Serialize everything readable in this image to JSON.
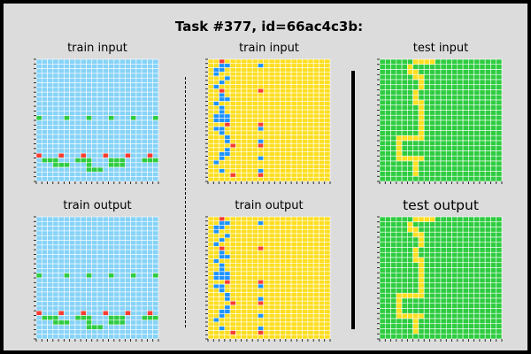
{
  "title": "Task #377, id=66ac4c3b:",
  "colors": {
    "background": "#dcdcdc",
    "grid_line": "#ffffff",
    "palette": {
      "B": "#87d3f8",
      "Y": "#fede1f",
      "G": "#2ecc40",
      "R": "#f93c31",
      "U": "#1e93ff"
    }
  },
  "panels": [
    {
      "label": "train input",
      "grid": [
        "BBBBBBBBBBBBBBBBBBBBBB",
        "BBBBBBBBBBBBBBBBBBBBBB",
        "BBBBBBBBBBBBBBBBBBBBBB",
        "BBBBBBBBBBBBBBBBBBBBBB",
        "BBBBBBBBBBBBBBBBBBBBBB",
        "BBBBBBBBBBBBBBBBBBBBBB",
        "BBBBBBBBBBBBBBBBBBBBBB",
        "BBBBBBBBBBBBBBBBBBBBBB",
        "BBBBBBBBBBBBBBBBBBBBBB",
        "BBBBBBBBBBBBBBBBBBBBBB",
        "BBBBBBBBBBBBBBBBBBBBBB",
        "BBBBBBBBBBBBBBBBBBBBBB",
        "GBBBBGBBBGBBBGBBBGBBBG",
        "BBBBBBBBBBBBBBBBBBBBBB",
        "BBBBBBBBBBBBBBBBBBBBBB",
        "BBBBBBBBBBBBBBBBBBBBBB",
        "BBBBBBBBBBBBBBBBBBBBBB",
        "BBBBBBBBBBBBBBBBBBBBBB",
        "BBBBBBBBBBBBBBBBBBBBBB",
        "BBBBBBBBBBBBBBBBBBBBBB",
        "RBBBRBBBRBBBRBBBRBBBRB",
        "BGGGBBBGGGBBBGGGBBBGGG",
        "BBBGGGBBBGBBBGGGBBBBBB",
        "BBBBBBBBBGGGBBBBBBBBBB",
        "BBBBBBBBBBBBBBBBBBBBBB",
        "BBBBBBBBBBBBBBBBBBBBBB"
      ]
    },
    {
      "label": "train input",
      "grid": [
        "YYRYYYYYYYYYYYYYYYYYYY",
        "YYUUYYYYYUYYYYYYYYYYYY",
        "YUUYYYYYYYYYYYYYYYYYYY",
        "YUYYYYYYYYYYYYYYYYYYYY",
        "YYYUYYYYYYYYYYYYYYYYYY",
        "YYUYYYYYYYYYYYYYYYYYYY",
        "YUYYYYYYYYYYYYYYYYYYYY",
        "YYRYYYYYYRYYYYYYYYYYYY",
        "YYUYYYYYYYYYYYYYYYYYYY",
        "YYUUYYYYYYYYYYYYYYYYYY",
        "YUYYYYYYYYYYYYYYYYYYYY",
        "YYUYYYYYYYYYYYYYYYYYYY",
        "YYUYYYYYYYYYYYYYYYYYYY",
        "YUUUYYYYYYYYYYYYYYYYYY",
        "YUUUYYYYYYYYYYYYYYYYYY",
        "YYYRYYYYYRYYYYYYYYYYYY",
        "YUUYYYYYYUYYYYYYYYYYYY",
        "YYUYYYYYYYYYYYYYYYYYYY",
        "YYYUYYYYYYYYYYYYYYYYYY",
        "YYYUYYYYYUYYYYYYYYYYYY",
        "YYYYRYYYYRYYYYYYYYYYYY",
        "YYYUYYYYYYYYYYYYYYYYYY",
        "YYUUYYYYYYYYYYYYYYYYYY",
        "YYUYYYYYYUYYYYYYYYYYYY",
        "YUYYYYYYYYYYYYYYYYYYYY",
        "YYYYYYYYYYYYYYYYYYYYYY",
        "YYUYYYYYYUYYYYYYYYYYYY",
        "YYYYRYYYYRYYYYYYYYYYYY",
        "YYYYYYYYYYYYYYYYYYYYYY"
      ]
    },
    {
      "label": "test input",
      "grid": [
        "GGGGGGYYYYGGGGGGGGGGGG",
        "GGGGGYGGGGGGGGGGGGGGGG",
        "GGGGGYYGGGGGGGGGGGGGGG",
        "GGGGGGYYGGGGGGGGGGGGGG",
        "GGGGGGGYGGGGGGGGGGGGGG",
        "GGGGGGGYGGGGGGGGGGGGGG",
        "GGGGGGYGGGGGGGGGGGGGGG",
        "GGGGGGYGGGGGGGGGGGGGGG",
        "GGGGGGYYGGGGGGGGGGGGGG",
        "GGGGGGGYGGGGGGGGGGGGGG",
        "GGGGGGGYGGGGGGGGGGGGGG",
        "GGGGGGGYGGGGGGGGGGGGGG",
        "GGGGGGGYGGGGGGGGGGGGGG",
        "GGGGGGGYGGGGGGGGGGGGGG",
        "GGGGGGGYGGGGGGGGGGGGGG",
        "GGGYYYYYGGGGGGGGGGGGGG",
        "GGGYGGGGGGGGGGGGGGGGGG",
        "GGGYGGGGGGGGGGGGGGGGGG",
        "GGGYGGGGGGGGGGGGGGGGGG",
        "GGGYYYYYGGGGGGGGGGGGGG",
        "GGGGGGYGGGGGGGGGGGGGGG",
        "GGGGGGYGGGGGGGGGGGGGGG",
        "GGGGGGYGGGGGGGGGGGGGGG",
        "GGGGGGGGGGGGGGGGGGGGGG"
      ]
    },
    {
      "label": "train output",
      "grid": [
        "BBBBBBBBBBBBBBBBBBBBBB",
        "BBBBBBBBBBBBBBBBBBBBBB",
        "BBBBBBBBBBBBBBBBBBBBBB",
        "BBBBBBBBBBBBBBBBBBBBBB",
        "BBBBBBBBBBBBBBBBBBBBBB",
        "BBBBBBBBBBBBBBBBBBBBBB",
        "BBBBBBBBBBBBBBBBBBBBBB",
        "BBBBBBBBBBBBBBBBBBBBBB",
        "BBBBBBBBBBBBBBBBBBBBBB",
        "BBBBBBBBBBBBBBBBBBBBBB",
        "BBBBBBBBBBBBBBBBBBBBBB",
        "BBBBBBBBBBBBBBBBBBBBBB",
        "GBBBBGBBBGBBBGBBBGBBBG",
        "BBBBBBBBBBBBBBBBBBBBBB",
        "BBBBBBBBBBBBBBBBBBBBBB",
        "BBBBBBBBBBBBBBBBBBBBBB",
        "BBBBBBBBBBBBBBBBBBBBBB",
        "BBBBBBBBBBBBBBBBBBBBBB",
        "BBBBBBBBBBBBBBBBBBBBBB",
        "BBBBBBBBBBBBBBBBBBBBBB",
        "RBBBRBBBRBBBRBBBRBBBRB",
        "BGGGBBBGGGBBBGGGBBBGGG",
        "BBBGGGBBBGBBBGGGBBBBBB",
        "BBBBBBBBBGGGBBBBBBBBBB",
        "BBBBBBBBBBBBBBBBBBBBBB",
        "BBBBBBBBBBBBBBBBBBBBBB"
      ]
    },
    {
      "label": "train output",
      "grid": [
        "YYRYYYYYYYYYYYYYYYYYYY",
        "YYUUYYYYYUYYYYYYYYYYYY",
        "YUUYYYYYYYYYYYYYYYYYYY",
        "YUYYYYYYYYYYYYYYYYYYYY",
        "YYYUYYYYYYYYYYYYYYYYYY",
        "YYUYYYYYYYYYYYYYYYYYYY",
        "YUYYYYYYYYYYYYYYYYYYYY",
        "YYRYYYYYYRYYYYYYYYYYYY",
        "YYUYYYYYYYYYYYYYYYYYYY",
        "YYUUYYYYYYYYYYYYYYYYYY",
        "YUYYYYYYYYYYYYYYYYYYYY",
        "YYUYYYYYYYYYYYYYYYYYYY",
        "YYUYYYYYYYYYYYYYYYYYYY",
        "YUUUYYYYYYYYYYYYYYYYYY",
        "YUUUYYYYYYYYYYYYYYYYYY",
        "YYYRYYYYYRYYYYYYYYYYYY",
        "YUUYYYYYYUYYYYYYYYYYYY",
        "YYUYYYYYYYYYYYYYYYYYYY",
        "YYYUYYYYYYYYYYYYYYYYYY",
        "YYYUYYYYYUYYYYYYYYYYYY",
        "YYYYRYYYYRYYYYYYYYYYYY",
        "YYYUYYYYYYYYYYYYYYYYYY",
        "YYUUYYYYYYYYYYYYYYYYYY",
        "YYUYYYYYYUYYYYYYYYYYYY",
        "YUYYYYYYYYYYYYYYYYYYYY",
        "YYYYYYYYYYYYYYYYYYYYYY",
        "YYUYYYYYYUYYYYYYYYYYYY",
        "YYYYRYYYYRYYYYYYYYYYYY",
        "YYYYYYYYYYYYYYYYYYYYYY"
      ]
    },
    {
      "label": "test output",
      "grid": [
        "GGGGGGYYYYGGGGGGGGGGGG",
        "GGGGGYGGGGGGGGGGGGGGGG",
        "GGGGGYYGGGGGGGGGGGGGGG",
        "GGGGGGYYGGGGGGGGGGGGGG",
        "GGGGGGGYGGGGGGGGGGGGGG",
        "GGGGGGGYGGGGGGGGGGGGGG",
        "GGGGGGYGGGGGGGGGGGGGGG",
        "GGGGGGYGGGGGGGGGGGGGGG",
        "GGGGGGYYGGGGGGGGGGGGGG",
        "GGGGGGGYGGGGGGGGGGGGGG",
        "GGGGGGGYGGGGGGGGGGGGGG",
        "GGGGGGGYGGGGGGGGGGGGGG",
        "GGGGGGGYGGGGGGGGGGGGGG",
        "GGGGGGGYGGGGGGGGGGGGGG",
        "GGGGGGGYGGGGGGGGGGGGGG",
        "GGGYYYYYGGGGGGGGGGGGGG",
        "GGGYGGGGGGGGGGGGGGGGGG",
        "GGGYGGGGGGGGGGGGGGGGGG",
        "GGGYGGGGGGGGGGGGGGGGGG",
        "GGGYYYYYGGGGGGGGGGGGGG",
        "GGGGGGYGGGGGGGGGGGGGGG",
        "GGGGGGYGGGGGGGGGGGGGGG",
        "GGGGGGYGGGGGGGGGGGGGGG",
        "GGGGGGGGGGGGGGGGGGGGGG"
      ]
    }
  ]
}
